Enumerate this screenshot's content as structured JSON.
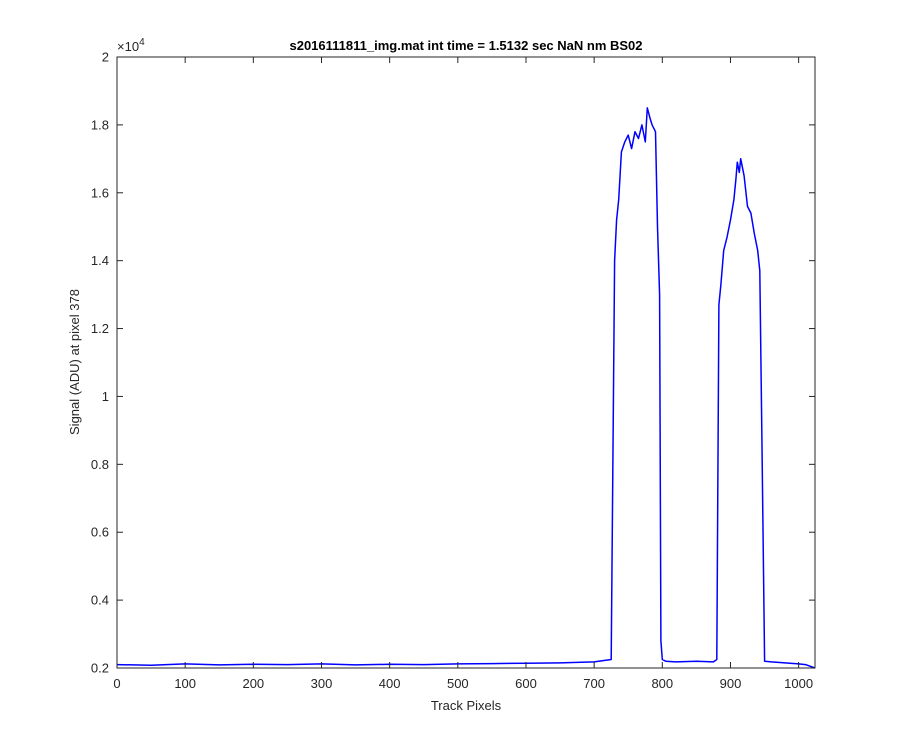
{
  "chart_data": {
    "type": "line",
    "title": "s2016111811_img.mat int time = 1.5132 sec  NaN nm BS02",
    "xlabel": "Track Pixels",
    "ylabel": "Signal (ADU) at pixel 378",
    "xlim": [
      0,
      1024
    ],
    "ylim": [
      2000,
      20000
    ],
    "x_ticks": [
      0,
      100,
      200,
      300,
      400,
      500,
      600,
      700,
      800,
      900,
      1000
    ],
    "x_tick_labels": [
      "0",
      "100",
      "200",
      "300",
      "400",
      "500",
      "600",
      "700",
      "800",
      "900",
      "1000"
    ],
    "y_ticks": [
      2000,
      4000,
      6000,
      8000,
      10000,
      12000,
      14000,
      16000,
      18000,
      20000
    ],
    "y_tick_labels": [
      "0.2",
      "0.4",
      "0.6",
      "0.8",
      "1",
      "1.2",
      "1.4",
      "1.6",
      "1.8",
      "2"
    ],
    "y_exponent_label": "×10",
    "y_exponent_power": "4",
    "grid": false,
    "colors": {
      "series": "#0000ff",
      "axes": "#262626"
    },
    "series": [
      {
        "x": [
          0,
          50,
          100,
          150,
          200,
          250,
          300,
          350,
          400,
          450,
          500,
          550,
          600,
          650,
          700,
          725,
          730,
          733,
          736,
          740,
          745,
          750,
          755,
          760,
          765,
          770,
          775,
          778,
          782,
          785,
          790,
          793,
          796,
          798,
          800,
          805,
          820,
          850,
          875,
          880,
          883,
          886,
          890,
          895,
          900,
          905,
          908,
          910,
          913,
          915,
          920,
          925,
          930,
          935,
          940,
          943,
          946,
          950,
          960,
          980,
          1000,
          1010,
          1024
        ],
        "y": [
          2100,
          2080,
          2120,
          2090,
          2110,
          2100,
          2120,
          2090,
          2110,
          2100,
          2120,
          2130,
          2140,
          2150,
          2180,
          2250,
          14000,
          15200,
          15800,
          17200,
          17500,
          17700,
          17300,
          17800,
          17600,
          18000,
          17500,
          18500,
          18200,
          18000,
          17800,
          15000,
          13000,
          2800,
          2250,
          2200,
          2180,
          2200,
          2180,
          2250,
          12700,
          13300,
          14300,
          14700,
          15200,
          15800,
          16400,
          16900,
          16600,
          17000,
          16500,
          15600,
          15400,
          14800,
          14300,
          13700,
          9000,
          2200,
          2180,
          2150,
          2120,
          2100,
          2000
        ]
      }
    ]
  }
}
